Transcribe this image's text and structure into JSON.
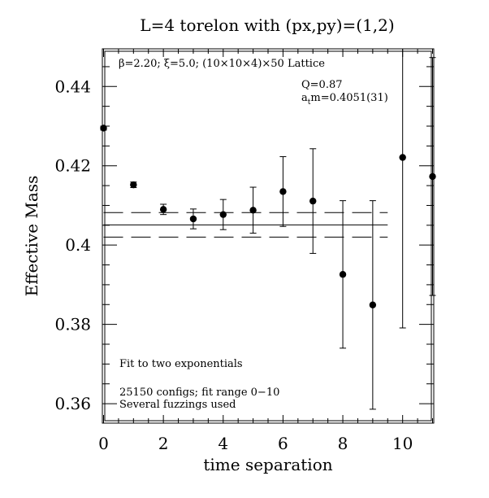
{
  "chart_data": {
    "type": "scatter",
    "title": "L=4 torelon with (px,py)=(1,2)",
    "xlabel": "time separation",
    "ylabel": "Effective Mass",
    "xlim": [
      0,
      11
    ],
    "ylim": [
      0.3555,
      0.4495
    ],
    "x_ticks": [
      0,
      2,
      4,
      6,
      8,
      10
    ],
    "x_tick_labels": [
      "0",
      "2",
      "4",
      "6",
      "8",
      "10"
    ],
    "y_ticks": [
      0.36,
      0.38,
      0.4,
      0.42,
      0.44
    ],
    "y_tick_labels": [
      "0.36",
      "0.38",
      "0.4",
      "0.42",
      "0.44"
    ],
    "grid": false,
    "annotations": {
      "lattice": "β=2.20; ξ=5.0; (10×10×4)×50 Lattice",
      "q_value": "Q=0.87",
      "mass_prefix": "a",
      "mass_sub": "t",
      "mass_value": "m=0.4051(31)",
      "fit_note": "Fit to two exponentials",
      "configs_note": "25150 configs; fit range 0−10",
      "fuzz_note": "Several fuzzings used"
    },
    "fit": {
      "value": 0.4051,
      "error": 0.0031,
      "x_range": [
        0,
        9.5
      ]
    },
    "series": [
      {
        "points": [
          {
            "x": 0,
            "y": 0.4295,
            "err": 0.0005
          },
          {
            "x": 1,
            "y": 0.4152,
            "err": 0.0007
          },
          {
            "x": 2,
            "y": 0.409,
            "err": 0.0013
          },
          {
            "x": 3,
            "y": 0.4066,
            "err": 0.0025
          },
          {
            "x": 4,
            "y": 0.4077,
            "err": 0.0038
          },
          {
            "x": 5,
            "y": 0.4088,
            "err": 0.0058
          },
          {
            "x": 6,
            "y": 0.4135,
            "err": 0.0088
          },
          {
            "x": 7,
            "y": 0.4111,
            "err": 0.0132
          },
          {
            "x": 8,
            "y": 0.3926,
            "err": 0.0186
          },
          {
            "x": 9,
            "y": 0.3849,
            "err": 0.0263
          },
          {
            "x": 10,
            "y": 0.4221,
            "err": 0.043
          },
          {
            "x": 11,
            "y": 0.4173,
            "err": 0.03
          }
        ]
      }
    ]
  }
}
